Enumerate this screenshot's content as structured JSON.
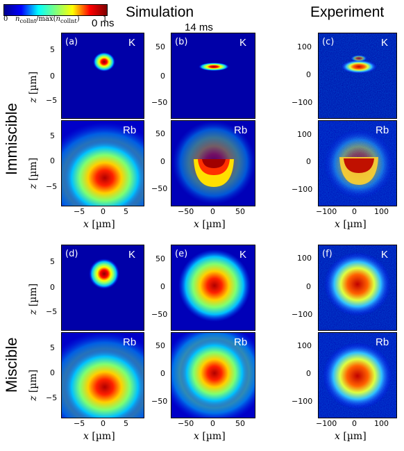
{
  "colorbar": {
    "min_label": "0",
    "max_label": "1",
    "label": "n_collnt/max(n_collnt)"
  },
  "headers": {
    "simulation": "Simulation",
    "experiment": "Experiment"
  },
  "times": {
    "t0": "0 ms",
    "t1": "14 ms"
  },
  "row_labels": {
    "immiscible": "Immiscible",
    "miscible": "Miscible"
  },
  "panel_labels": [
    "(a)",
    "(b)",
    "(c)",
    "(d)",
    "(e)",
    "(f)"
  ],
  "species": {
    "k": "K",
    "rb": "Rb"
  },
  "axis": {
    "x_label": "x [µm]",
    "z_label": "z [µm]",
    "col1_x_ticks": [
      "−5",
      "0",
      "5"
    ],
    "col2_x_ticks": [
      "−50",
      "0",
      "50"
    ],
    "col3_x_ticks": [
      "−100",
      "0",
      "100"
    ],
    "col1_z_ticks": [
      "5",
      "0",
      "−5"
    ],
    "col2_z_ticks": [
      "50",
      "0",
      "−50"
    ],
    "col3_z_ticks": [
      "100",
      "0",
      "−100"
    ]
  },
  "colors": {
    "jet_low": "#00007f",
    "jet_mid": "#7fff7f",
    "jet_high": "#7f0000"
  }
}
